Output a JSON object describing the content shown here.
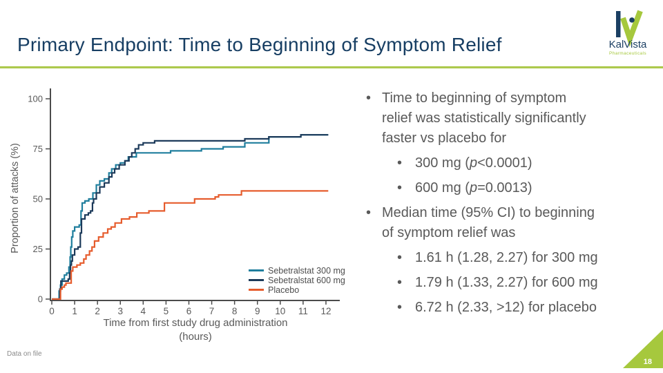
{
  "slide": {
    "title": "Primary Endpoint: Time to Beginning of Symptom Relief",
    "footnote": "Data on file",
    "page_number": "18"
  },
  "logo": {
    "name": "KalVista",
    "tagline": "Pharmaceuticals"
  },
  "colors": {
    "accent_green": "#a6c83d",
    "title_navy": "#173e63",
    "text_gray": "#595959",
    "axis_gray": "#4b4b4b",
    "teal": "#1f7e9d",
    "navy": "#1c3a5a",
    "orange": "#e65c2d"
  },
  "right_panel": {
    "b1": {
      "lines": [
        "Time to beginning of symptom",
        "relief was statistically significantly",
        "faster vs placebo for"
      ]
    },
    "b1_sub": [
      {
        "pre": "300 mg (",
        "p": "p",
        "post": "<0.0001)"
      },
      {
        "pre": "600 mg (",
        "p": "p",
        "post": "=0.0013)"
      }
    ],
    "b2": {
      "lines": [
        "Median time (95% CI) to beginning",
        "of symptom relief was"
      ]
    },
    "b2_sub": [
      "1.61 h (1.28, 2.27) for 300 mg",
      "1.79 h (1.33, 2.27) for 600 mg",
      "6.72 h (2.33, >12) for placebo"
    ]
  },
  "chart_data": {
    "type": "line",
    "subtype": "step-kaplan-meier",
    "title": "",
    "xlabel": [
      "Time from first study drug administration",
      "(hours)"
    ],
    "ylabel": "Proportion of attacks (%)",
    "xlim": [
      0,
      12.6
    ],
    "ylim": [
      0,
      100
    ],
    "xticks": [
      0,
      1,
      2,
      3,
      4,
      5,
      6,
      7,
      8,
      9,
      10,
      11,
      12
    ],
    "yticks": [
      0,
      25,
      50,
      75,
      100
    ],
    "grid": false,
    "legend_position": "inside-bottom-right",
    "series": [
      {
        "name": "Sebetralstat 300 mg",
        "color": "#1f7e9d",
        "points": [
          [
            0.25,
            0
          ],
          [
            0.32,
            4
          ],
          [
            0.38,
            7
          ],
          [
            0.45,
            10
          ],
          [
            0.55,
            12
          ],
          [
            0.65,
            13
          ],
          [
            0.75,
            16
          ],
          [
            0.8,
            21
          ],
          [
            0.83,
            26
          ],
          [
            0.87,
            31
          ],
          [
            0.92,
            34
          ],
          [
            1.0,
            36
          ],
          [
            1.2,
            37
          ],
          [
            1.28,
            44
          ],
          [
            1.33,
            48
          ],
          [
            1.45,
            49
          ],
          [
            1.62,
            50
          ],
          [
            1.8,
            53
          ],
          [
            1.95,
            57
          ],
          [
            2.1,
            59
          ],
          [
            2.3,
            60
          ],
          [
            2.5,
            63
          ],
          [
            2.62,
            65
          ],
          [
            2.8,
            67
          ],
          [
            3.0,
            68
          ],
          [
            3.2,
            69
          ],
          [
            3.35,
            71
          ],
          [
            3.7,
            73
          ],
          [
            5.2,
            74
          ],
          [
            6.55,
            75
          ],
          [
            7.5,
            76
          ],
          [
            8.45,
            78
          ],
          [
            9.5,
            81
          ],
          [
            10.9,
            82
          ],
          [
            12.05,
            82
          ]
        ]
      },
      {
        "name": "Sebetralstat 600 mg",
        "color": "#1c3a5a",
        "points": [
          [
            0.27,
            0
          ],
          [
            0.35,
            5
          ],
          [
            0.4,
            9
          ],
          [
            0.72,
            10
          ],
          [
            0.78,
            13
          ],
          [
            0.82,
            17
          ],
          [
            0.86,
            19
          ],
          [
            0.9,
            22
          ],
          [
            1.0,
            25
          ],
          [
            1.15,
            26
          ],
          [
            1.25,
            33
          ],
          [
            1.3,
            40
          ],
          [
            1.45,
            42
          ],
          [
            1.6,
            43
          ],
          [
            1.7,
            44
          ],
          [
            1.78,
            48
          ],
          [
            1.83,
            50
          ],
          [
            1.95,
            53
          ],
          [
            2.1,
            56
          ],
          [
            2.3,
            58
          ],
          [
            2.5,
            61
          ],
          [
            2.63,
            63
          ],
          [
            2.75,
            65
          ],
          [
            2.95,
            67
          ],
          [
            3.2,
            69
          ],
          [
            3.38,
            71
          ],
          [
            3.5,
            73
          ],
          [
            3.65,
            75
          ],
          [
            3.8,
            77
          ],
          [
            4.0,
            78
          ],
          [
            4.5,
            79
          ],
          [
            8.45,
            80
          ],
          [
            9.5,
            81
          ],
          [
            10.9,
            82
          ],
          [
            12.05,
            82
          ]
        ]
      },
      {
        "name": "Placebo",
        "color": "#e65c2d",
        "points": [
          [
            0.3,
            0
          ],
          [
            0.38,
            5
          ],
          [
            0.45,
            6
          ],
          [
            0.55,
            7
          ],
          [
            0.62,
            8
          ],
          [
            0.85,
            14
          ],
          [
            0.92,
            16
          ],
          [
            1.1,
            17
          ],
          [
            1.25,
            18
          ],
          [
            1.4,
            20
          ],
          [
            1.5,
            22
          ],
          [
            1.65,
            24
          ],
          [
            1.76,
            26
          ],
          [
            1.87,
            29
          ],
          [
            2.05,
            31
          ],
          [
            2.25,
            33
          ],
          [
            2.45,
            35
          ],
          [
            2.6,
            36
          ],
          [
            2.77,
            38
          ],
          [
            3.05,
            40
          ],
          [
            3.4,
            41
          ],
          [
            3.72,
            43
          ],
          [
            4.25,
            44
          ],
          [
            4.93,
            48
          ],
          [
            6.25,
            50
          ],
          [
            7.15,
            51
          ],
          [
            7.3,
            52
          ],
          [
            8.3,
            54
          ],
          [
            12.05,
            54
          ]
        ]
      }
    ],
    "annotations": {
      "p_values": {
        "300 mg": "p<0.0001",
        "600 mg": "p=0.0013"
      },
      "median_time_h_95ci": {
        "300 mg": "1.61 (1.28, 2.27)",
        "600 mg": "1.79 (1.33, 2.27)",
        "placebo": "6.72 (2.33, >12)"
      }
    }
  }
}
